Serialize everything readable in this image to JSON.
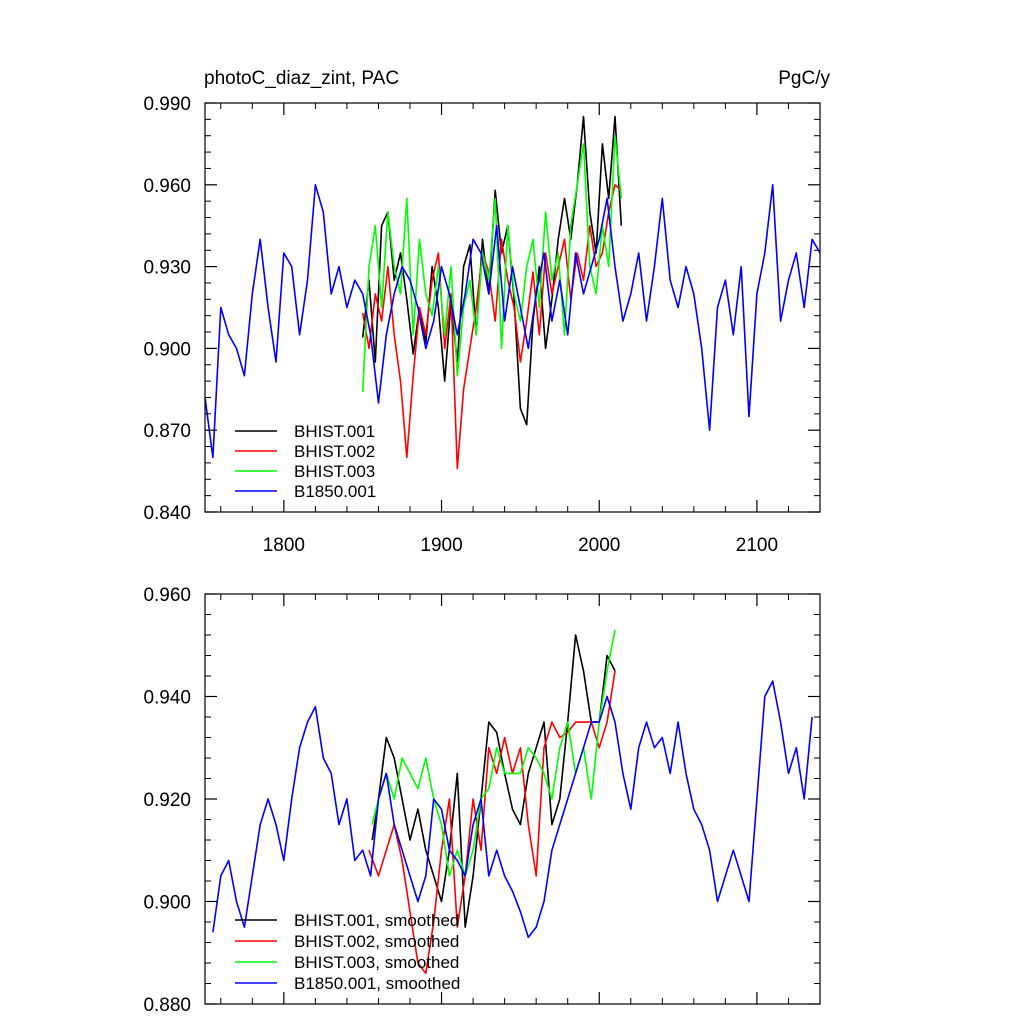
{
  "chart_data": [
    {
      "type": "line",
      "title": "photoC_diaz_zint, PAC",
      "units": "PgC/y",
      "xlim": [
        1750,
        2140
      ],
      "ylim": [
        0.84,
        0.99
      ],
      "xticks": [
        1800,
        1900,
        2000,
        2100
      ],
      "xtick_labels": [
        "1800",
        "1900",
        "2000",
        "2100"
      ],
      "yticks": [
        0.84,
        0.87,
        0.9,
        0.93,
        0.96,
        0.99
      ],
      "ytick_labels": [
        "0.840",
        "0.870",
        "0.900",
        "0.930",
        "0.960",
        "0.990"
      ],
      "grid": false,
      "legend_position": "bottom-left",
      "series": [
        {
          "name": "BHIST.001",
          "color": "#000000",
          "x": [
            1850,
            1854,
            1858,
            1862,
            1866,
            1870,
            1874,
            1878,
            1882,
            1886,
            1890,
            1894,
            1898,
            1902,
            1906,
            1910,
            1914,
            1918,
            1922,
            1926,
            1930,
            1934,
            1938,
            1942,
            1946,
            1950,
            1954,
            1958,
            1962,
            1966,
            1970,
            1974,
            1978,
            1982,
            1986,
            1990,
            1994,
            1998,
            2002,
            2006,
            2010,
            2014
          ],
          "y": [
            0.904,
            0.925,
            0.895,
            0.945,
            0.95,
            0.925,
            0.935,
            0.918,
            0.898,
            0.915,
            0.902,
            0.93,
            0.915,
            0.888,
            0.917,
            0.895,
            0.93,
            0.938,
            0.905,
            0.94,
            0.92,
            0.958,
            0.935,
            0.945,
            0.918,
            0.878,
            0.872,
            0.91,
            0.93,
            0.9,
            0.918,
            0.94,
            0.955,
            0.94,
            0.96,
            0.985,
            0.95,
            0.935,
            0.975,
            0.955,
            0.985,
            0.945
          ]
        },
        {
          "name": "BHIST.002",
          "color": "#ff0000",
          "x": [
            1850,
            1854,
            1858,
            1862,
            1866,
            1870,
            1874,
            1878,
            1882,
            1886,
            1890,
            1894,
            1898,
            1902,
            1906,
            1910,
            1914,
            1918,
            1922,
            1926,
            1930,
            1934,
            1938,
            1942,
            1946,
            1950,
            1954,
            1958,
            1962,
            1966,
            1970,
            1974,
            1978,
            1982,
            1986,
            1990,
            1994,
            1998,
            2002,
            2006,
            2010,
            2014
          ],
          "y": [
            0.913,
            0.9,
            0.92,
            0.91,
            0.93,
            0.905,
            0.888,
            0.86,
            0.89,
            0.915,
            0.905,
            0.925,
            0.935,
            0.9,
            0.92,
            0.856,
            0.885,
            0.9,
            0.915,
            0.935,
            0.928,
            0.91,
            0.94,
            0.925,
            0.915,
            0.895,
            0.91,
            0.928,
            0.905,
            0.935,
            0.92,
            0.93,
            0.94,
            0.918,
            0.935,
            0.925,
            0.945,
            0.93,
            0.935,
            0.95,
            0.96,
            0.958
          ]
        },
        {
          "name": "BHIST.003",
          "color": "#00ff00",
          "x": [
            1850,
            1854,
            1858,
            1862,
            1866,
            1870,
            1874,
            1878,
            1882,
            1886,
            1890,
            1894,
            1898,
            1902,
            1906,
            1910,
            1914,
            1918,
            1922,
            1926,
            1930,
            1934,
            1938,
            1942,
            1946,
            1950,
            1954,
            1958,
            1962,
            1966,
            1970,
            1974,
            1978,
            1982,
            1986,
            1990,
            1994,
            1998,
            2002,
            2006,
            2010,
            2014
          ],
          "y": [
            0.884,
            0.93,
            0.945,
            0.915,
            0.95,
            0.93,
            0.92,
            0.955,
            0.905,
            0.94,
            0.92,
            0.912,
            0.93,
            0.905,
            0.93,
            0.89,
            0.915,
            0.925,
            0.905,
            0.935,
            0.925,
            0.955,
            0.9,
            0.945,
            0.92,
            0.91,
            0.93,
            0.94,
            0.915,
            0.95,
            0.925,
            0.935,
            0.905,
            0.945,
            0.96,
            0.975,
            0.93,
            0.92,
            0.945,
            0.93,
            0.978,
            0.955
          ]
        },
        {
          "name": "B1850.001",
          "color": "#0000ff",
          "x": [
            1750,
            1755,
            1760,
            1765,
            1770,
            1775,
            1780,
            1785,
            1790,
            1795,
            1800,
            1805,
            1810,
            1815,
            1820,
            1825,
            1830,
            1835,
            1840,
            1845,
            1850,
            1855,
            1860,
            1865,
            1870,
            1875,
            1880,
            1885,
            1890,
            1895,
            1900,
            1905,
            1910,
            1915,
            1920,
            1925,
            1930,
            1935,
            1940,
            1945,
            1950,
            1955,
            1960,
            1965,
            1970,
            1975,
            1980,
            1985,
            1990,
            1995,
            2000,
            2005,
            2010,
            2015,
            2020,
            2025,
            2030,
            2035,
            2040,
            2045,
            2050,
            2055,
            2060,
            2065,
            2070,
            2075,
            2080,
            2085,
            2090,
            2095,
            2100,
            2105,
            2110,
            2115,
            2120,
            2125,
            2130,
            2135,
            2140
          ],
          "y": [
            0.882,
            0.86,
            0.915,
            0.905,
            0.9,
            0.89,
            0.92,
            0.94,
            0.915,
            0.895,
            0.935,
            0.93,
            0.905,
            0.925,
            0.96,
            0.95,
            0.92,
            0.93,
            0.915,
            0.925,
            0.92,
            0.905,
            0.88,
            0.905,
            0.92,
            0.93,
            0.925,
            0.915,
            0.9,
            0.91,
            0.93,
            0.92,
            0.905,
            0.92,
            0.94,
            0.935,
            0.92,
            0.945,
            0.91,
            0.93,
            0.915,
            0.9,
            0.92,
            0.935,
            0.91,
            0.925,
            0.905,
            0.935,
            0.92,
            0.93,
            0.94,
            0.955,
            0.93,
            0.91,
            0.92,
            0.935,
            0.91,
            0.93,
            0.955,
            0.925,
            0.915,
            0.93,
            0.92,
            0.9,
            0.87,
            0.915,
            0.925,
            0.905,
            0.93,
            0.875,
            0.92,
            0.935,
            0.96,
            0.91,
            0.925,
            0.935,
            0.915,
            0.94,
            0.935
          ]
        }
      ]
    },
    {
      "type": "line",
      "title": "",
      "xlim": [
        1750,
        2140
      ],
      "ylim": [
        0.88,
        0.96
      ],
      "xticks": [
        1800,
        1900,
        2000,
        2100
      ],
      "xtick_labels": [],
      "yticks": [
        0.88,
        0.9,
        0.92,
        0.94,
        0.96
      ],
      "ytick_labels": [
        "0.880",
        "0.900",
        "0.920",
        "0.940",
        "0.960"
      ],
      "grid": false,
      "legend_position": "bottom-left",
      "series": [
        {
          "name": "BHIST.001, smoothed",
          "color": "#000000",
          "x": [
            1856,
            1860,
            1865,
            1870,
            1875,
            1880,
            1885,
            1890,
            1895,
            1900,
            1905,
            1910,
            1915,
            1920,
            1925,
            1930,
            1935,
            1940,
            1945,
            1950,
            1955,
            1960,
            1965,
            1970,
            1975,
            1980,
            1985,
            1990,
            1995,
            2000,
            2005,
            2010
          ],
          "y": [
            0.912,
            0.92,
            0.932,
            0.928,
            0.92,
            0.912,
            0.918,
            0.91,
            0.905,
            0.9,
            0.91,
            0.925,
            0.895,
            0.905,
            0.92,
            0.935,
            0.933,
            0.925,
            0.918,
            0.915,
            0.925,
            0.93,
            0.935,
            0.915,
            0.92,
            0.935,
            0.952,
            0.945,
            0.935,
            0.935,
            0.948,
            0.945
          ]
        },
        {
          "name": "BHIST.002, smoothed",
          "color": "#ff0000",
          "x": [
            1854,
            1860,
            1865,
            1870,
            1875,
            1880,
            1885,
            1890,
            1895,
            1900,
            1905,
            1910,
            1915,
            1920,
            1925,
            1930,
            1935,
            1940,
            1945,
            1950,
            1955,
            1960,
            1965,
            1970,
            1975,
            1980,
            1985,
            1990,
            1995,
            2000,
            2005,
            2010
          ],
          "y": [
            0.91,
            0.905,
            0.91,
            0.915,
            0.908,
            0.898,
            0.888,
            0.886,
            0.896,
            0.91,
            0.92,
            0.895,
            0.905,
            0.92,
            0.91,
            0.93,
            0.925,
            0.932,
            0.925,
            0.93,
            0.915,
            0.905,
            0.93,
            0.935,
            0.932,
            0.933,
            0.935,
            0.935,
            0.935,
            0.93,
            0.935,
            0.945
          ]
        },
        {
          "name": "BHIST.003, smoothed",
          "color": "#00ff00",
          "x": [
            1856,
            1860,
            1865,
            1870,
            1875,
            1880,
            1885,
            1890,
            1895,
            1900,
            1905,
            1910,
            1915,
            1920,
            1925,
            1930,
            1935,
            1940,
            1945,
            1950,
            1955,
            1960,
            1965,
            1970,
            1975,
            1980,
            1985,
            1990,
            1995,
            2000,
            2005,
            2010
          ],
          "y": [
            0.915,
            0.92,
            0.925,
            0.92,
            0.928,
            0.925,
            0.922,
            0.928,
            0.92,
            0.915,
            0.905,
            0.91,
            0.905,
            0.91,
            0.92,
            0.922,
            0.93,
            0.925,
            0.925,
            0.925,
            0.93,
            0.928,
            0.925,
            0.92,
            0.93,
            0.935,
            0.925,
            0.93,
            0.92,
            0.935,
            0.945,
            0.953
          ]
        },
        {
          "name": "B1850.001, smoothed",
          "color": "#0000ff",
          "x": [
            1755,
            1760,
            1765,
            1770,
            1775,
            1780,
            1785,
            1790,
            1795,
            1800,
            1805,
            1810,
            1815,
            1820,
            1825,
            1830,
            1835,
            1840,
            1845,
            1850,
            1855,
            1860,
            1865,
            1870,
            1875,
            1880,
            1885,
            1890,
            1895,
            1900,
            1905,
            1910,
            1915,
            1920,
            1925,
            1930,
            1935,
            1940,
            1945,
            1950,
            1955,
            1960,
            1965,
            1970,
            1975,
            1980,
            1985,
            1990,
            1995,
            2000,
            2005,
            2010,
            2015,
            2020,
            2025,
            2030,
            2035,
            2040,
            2045,
            2050,
            2055,
            2060,
            2065,
            2070,
            2075,
            2080,
            2085,
            2090,
            2095,
            2100,
            2105,
            2110,
            2115,
            2120,
            2125,
            2130,
            2135
          ],
          "y": [
            0.894,
            0.905,
            0.908,
            0.9,
            0.895,
            0.905,
            0.915,
            0.92,
            0.915,
            0.908,
            0.92,
            0.93,
            0.935,
            0.938,
            0.928,
            0.925,
            0.915,
            0.92,
            0.908,
            0.91,
            0.905,
            0.92,
            0.925,
            0.915,
            0.91,
            0.905,
            0.9,
            0.905,
            0.92,
            0.918,
            0.91,
            0.908,
            0.905,
            0.915,
            0.92,
            0.905,
            0.91,
            0.905,
            0.902,
            0.898,
            0.893,
            0.895,
            0.9,
            0.91,
            0.915,
            0.92,
            0.925,
            0.93,
            0.935,
            0.935,
            0.94,
            0.935,
            0.925,
            0.918,
            0.93,
            0.935,
            0.93,
            0.932,
            0.925,
            0.935,
            0.925,
            0.918,
            0.915,
            0.91,
            0.9,
            0.905,
            0.91,
            0.905,
            0.9,
            0.92,
            0.94,
            0.943,
            0.935,
            0.925,
            0.93,
            0.92,
            0.936
          ]
        }
      ]
    }
  ]
}
